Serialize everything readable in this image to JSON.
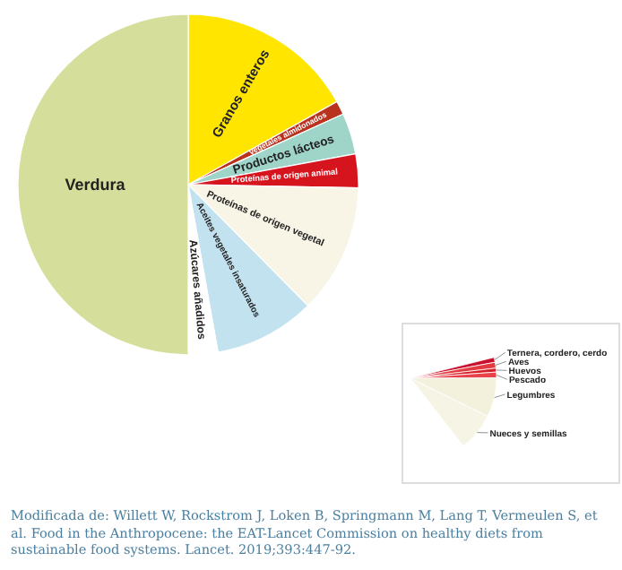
{
  "chart_data": [
    {
      "type": "pie",
      "categories": [
        "Granos enteros",
        "Vegetales almidonados",
        "Productos lácteos",
        "Proteínas de origen animal",
        "Proteínas de origen vegetal",
        "Aceites vegetales insaturados",
        "Azúcares añadidos",
        "Verdura"
      ],
      "values": [
        16.9,
        1.3,
        3.9,
        3.2,
        12.3,
        9.6,
        2.8,
        50
      ],
      "colors": [
        "#ffe500",
        "#b8321e",
        "#9fd4c9",
        "#d6141e",
        "#f8f5e6",
        "#c2e2ef",
        "#ffffff",
        "#d6de9c"
      ],
      "legend": false,
      "annotations": [
        "Modificada de: Willett W, Rockstrom J, Loken B, Springmann M, Lang T, Vermeulen S, et al. Food in the Anthropocene: the EAT-Lancet Commission on healthy diets from sustainable food systems. Lancet. 2019;393:447-92."
      ]
    },
    {
      "type": "pie",
      "categories": [
        "Ternera, cordero, cerdo",
        "Aves",
        "Huevos",
        "Pescado",
        "Legumbres",
        "Nueces y semillas"
      ],
      "values": [
        5,
        6,
        4,
        6,
        40,
        39
      ],
      "colors": [
        "#c8102e",
        "#e23a40",
        "#d61f26",
        "#e8434a",
        "#f3f1dc",
        "#f6f4e4"
      ],
      "legend": false
    }
  ]
}
